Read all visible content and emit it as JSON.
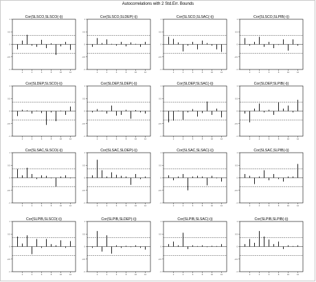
{
  "window": {
    "title": "Autocorrelations with 2 Std.Err. Bounds"
  },
  "chart_data": {
    "type": "bar",
    "title": "Autocorrelations with 2 Std.Err. Bounds",
    "lags": [
      1,
      2,
      3,
      4,
      5,
      6,
      7,
      8,
      9,
      10,
      11,
      12
    ],
    "x_tick_labels": [
      "2",
      "4",
      "6",
      "8",
      "10",
      "12"
    ],
    "y_tick_labels": [
      "1",
      "0.5",
      "0",
      "-0.5",
      "-1"
    ],
    "ylim": [
      -1,
      1
    ],
    "bounds": [
      0.35,
      -0.35
    ],
    "panels": [
      {
        "title": "Cor(SLSCO,SLSCO(-i))",
        "values": [
          -0.2,
          0.15,
          0.38,
          -0.05,
          -0.1,
          0.18,
          -0.15,
          0.04,
          -0.42,
          -0.08,
          0.1,
          -0.22
        ]
      },
      {
        "title": "Cor(SLSCO,SLDEP(-i))",
        "values": [
          -0.1,
          0.25,
          0.05,
          0.2,
          0.02,
          -0.05,
          0.1,
          -0.08,
          0.08,
          0.02,
          -0.1,
          0.1
        ]
      },
      {
        "title": "Cor(SLSCO,SLSAC(-i))",
        "values": [
          0.3,
          0.22,
          0.08,
          -0.28,
          -0.05,
          0.1,
          -0.2,
          0.15,
          0.05,
          -0.05,
          -0.2,
          -0.3
        ]
      },
      {
        "title": "Cor(SLSCO,SLPIB(-i))",
        "values": [
          0.25,
          -0.05,
          0.1,
          0.3,
          -0.1,
          0.1,
          -0.15,
          -0.02,
          0.2,
          -0.25,
          0.2,
          -0.05
        ]
      },
      {
        "title": "Cor(SLDEP,SLSCO(-i))",
        "values": [
          -0.2,
          0.05,
          0.03,
          -0.1,
          0.02,
          -0.08,
          -0.55,
          -0.05,
          -0.4,
          0.02,
          -0.15,
          0.18
        ]
      },
      {
        "title": "Cor(SLDEP,SLDEP(-i))",
        "values": [
          -0.05,
          0.08,
          0.02,
          -0.1,
          0.22,
          -0.18,
          -0.15,
          0.05,
          -0.3,
          0.04,
          -0.05,
          -0.1
        ]
      },
      {
        "title": "Cor(SLDEP,SLSAC(-i))",
        "values": [
          -0.45,
          -0.38,
          0.02,
          -0.35,
          -0.05,
          0.08,
          -0.22,
          -0.08,
          0.38,
          -0.15,
          0.1,
          -0.25
        ]
      },
      {
        "title": "Cor(SLDEP,SLPIB(-i))",
        "values": [
          -0.1,
          -0.45,
          0.1,
          0.3,
          -0.05,
          0.05,
          -0.15,
          0.35,
          0.1,
          0.22,
          -0.05,
          0.45
        ]
      },
      {
        "title": "Cor(SLSAC,SLSCO(-i))",
        "values": [
          0.35,
          0.1,
          0.4,
          0.15,
          -0.05,
          0.1,
          0.08,
          -0.02,
          -0.35,
          0.05,
          0.1,
          -0.02
        ]
      },
      {
        "title": "Cor(SLSAC,SLDEP(-i))",
        "values": [
          0.1,
          0.72,
          0.3,
          0.05,
          0.22,
          0.12,
          0.08,
          0.05,
          -0.28,
          0.15,
          -0.05,
          0.05
        ]
      },
      {
        "title": "Cor(SLSAC,SLSAC(-i))",
        "values": [
          0.1,
          -0.1,
          0.05,
          0.15,
          -0.5,
          0.05,
          0.08,
          0.05,
          -0.3,
          0.08,
          -0.02,
          -0.15
        ]
      },
      {
        "title": "Cor(SLSAC,SLPIB(-i))",
        "values": [
          0.15,
          0.08,
          -0.25,
          0.05,
          0.3,
          -0.1,
          0.15,
          -0.05,
          -0.15,
          0.05,
          0.05,
          0.55
        ]
      },
      {
        "title": "Cor(SLPIB,SLSCO(-i))",
        "values": [
          0.4,
          0.12,
          0.45,
          -0.3,
          0.3,
          -0.05,
          0.3,
          0.1,
          0.05,
          0.25,
          -0.05,
          0.22
        ]
      },
      {
        "title": "Cor(SLPIB,SLDEP(-i))",
        "values": [
          -0.05,
          0.62,
          -0.2,
          0.45,
          -0.28,
          0.05,
          -0.05,
          0.03,
          -0.02,
          0.05,
          -0.05,
          -0.12
        ]
      },
      {
        "title": "Cor(SLPIB,SLSAC(-i))",
        "values": [
          0.1,
          0.2,
          0.05,
          0.55,
          -0.1,
          0.05,
          0.02,
          0.05,
          -0.02,
          0.03,
          0.02,
          0.1
        ]
      },
      {
        "title": "Cor(SLPIB,SLPIB(-i))",
        "values": [
          0.1,
          0.3,
          0.15,
          0.62,
          0.4,
          0.28,
          0.1,
          0.2,
          -0.1,
          0.05,
          0.02,
          0.05
        ]
      }
    ]
  }
}
